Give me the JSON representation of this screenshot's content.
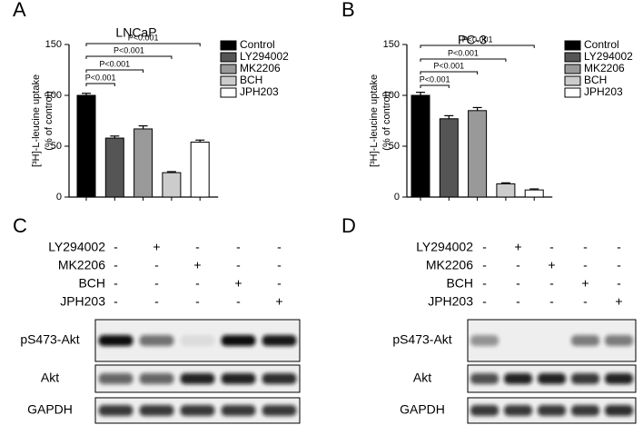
{
  "panel_labels": [
    "A",
    "B",
    "C",
    "D"
  ],
  "chart_data": [
    {
      "type": "bar",
      "title": "LNCaP",
      "ylabel": "[³H]-L-leucine uptake",
      "ylabel2": "(% of control)",
      "categories": [
        "Control",
        "LY294002",
        "MK2206",
        "BCH",
        "JPH203"
      ],
      "values": [
        100,
        58,
        67,
        24,
        54
      ],
      "errors": [
        2,
        2,
        3,
        1,
        2
      ],
      "colors": [
        "#000000",
        "#555555",
        "#999999",
        "#cccccc",
        "#ffffff"
      ],
      "ylim": [
        0,
        150
      ],
      "yticks": [
        0,
        50,
        100,
        150
      ],
      "annotations": [
        "P<0.001",
        "P<0.001",
        "P<0.001",
        "P<0.001"
      ]
    },
    {
      "type": "bar",
      "title": "PC-3",
      "ylabel": "[³H]-L-leucine uptake",
      "ylabel2": "(% of control)",
      "categories": [
        "Control",
        "LY294002",
        "MK2206",
        "BCH",
        "JPH203"
      ],
      "values": [
        100,
        77,
        85,
        13,
        7
      ],
      "errors": [
        3,
        3,
        3,
        1,
        1
      ],
      "colors": [
        "#000000",
        "#555555",
        "#999999",
        "#cccccc",
        "#ffffff"
      ],
      "ylim": [
        0,
        150
      ],
      "yticks": [
        0,
        50,
        100,
        150
      ],
      "annotations": [
        "P<0.001",
        "P<0.001",
        "P<0.001",
        "P<0.001"
      ]
    }
  ],
  "blots": [
    {
      "treatments": [
        {
          "name": "LY294002",
          "signs": [
            "-",
            "+",
            "-",
            "-",
            "-"
          ]
        },
        {
          "name": "MK2206",
          "signs": [
            "-",
            "-",
            "+",
            "-",
            "-"
          ]
        },
        {
          "name": "BCH",
          "signs": [
            "-",
            "-",
            "-",
            "+",
            "-"
          ]
        },
        {
          "name": "JPH203",
          "signs": [
            "-",
            "-",
            "-",
            "-",
            "+"
          ]
        }
      ],
      "rows": [
        "pS473-Akt",
        "Akt",
        "GAPDH"
      ]
    },
    {
      "treatments": [
        {
          "name": "LY294002",
          "signs": [
            "-",
            "+",
            "-",
            "-",
            "-"
          ]
        },
        {
          "name": "MK2206",
          "signs": [
            "-",
            "-",
            "+",
            "-",
            "-"
          ]
        },
        {
          "name": "BCH",
          "signs": [
            "-",
            "-",
            "-",
            "+",
            "-"
          ]
        },
        {
          "name": "JPH203",
          "signs": [
            "-",
            "-",
            "-",
            "-",
            "+"
          ]
        }
      ],
      "rows": [
        "pS473-Akt",
        "Akt",
        "GAPDH"
      ]
    }
  ]
}
